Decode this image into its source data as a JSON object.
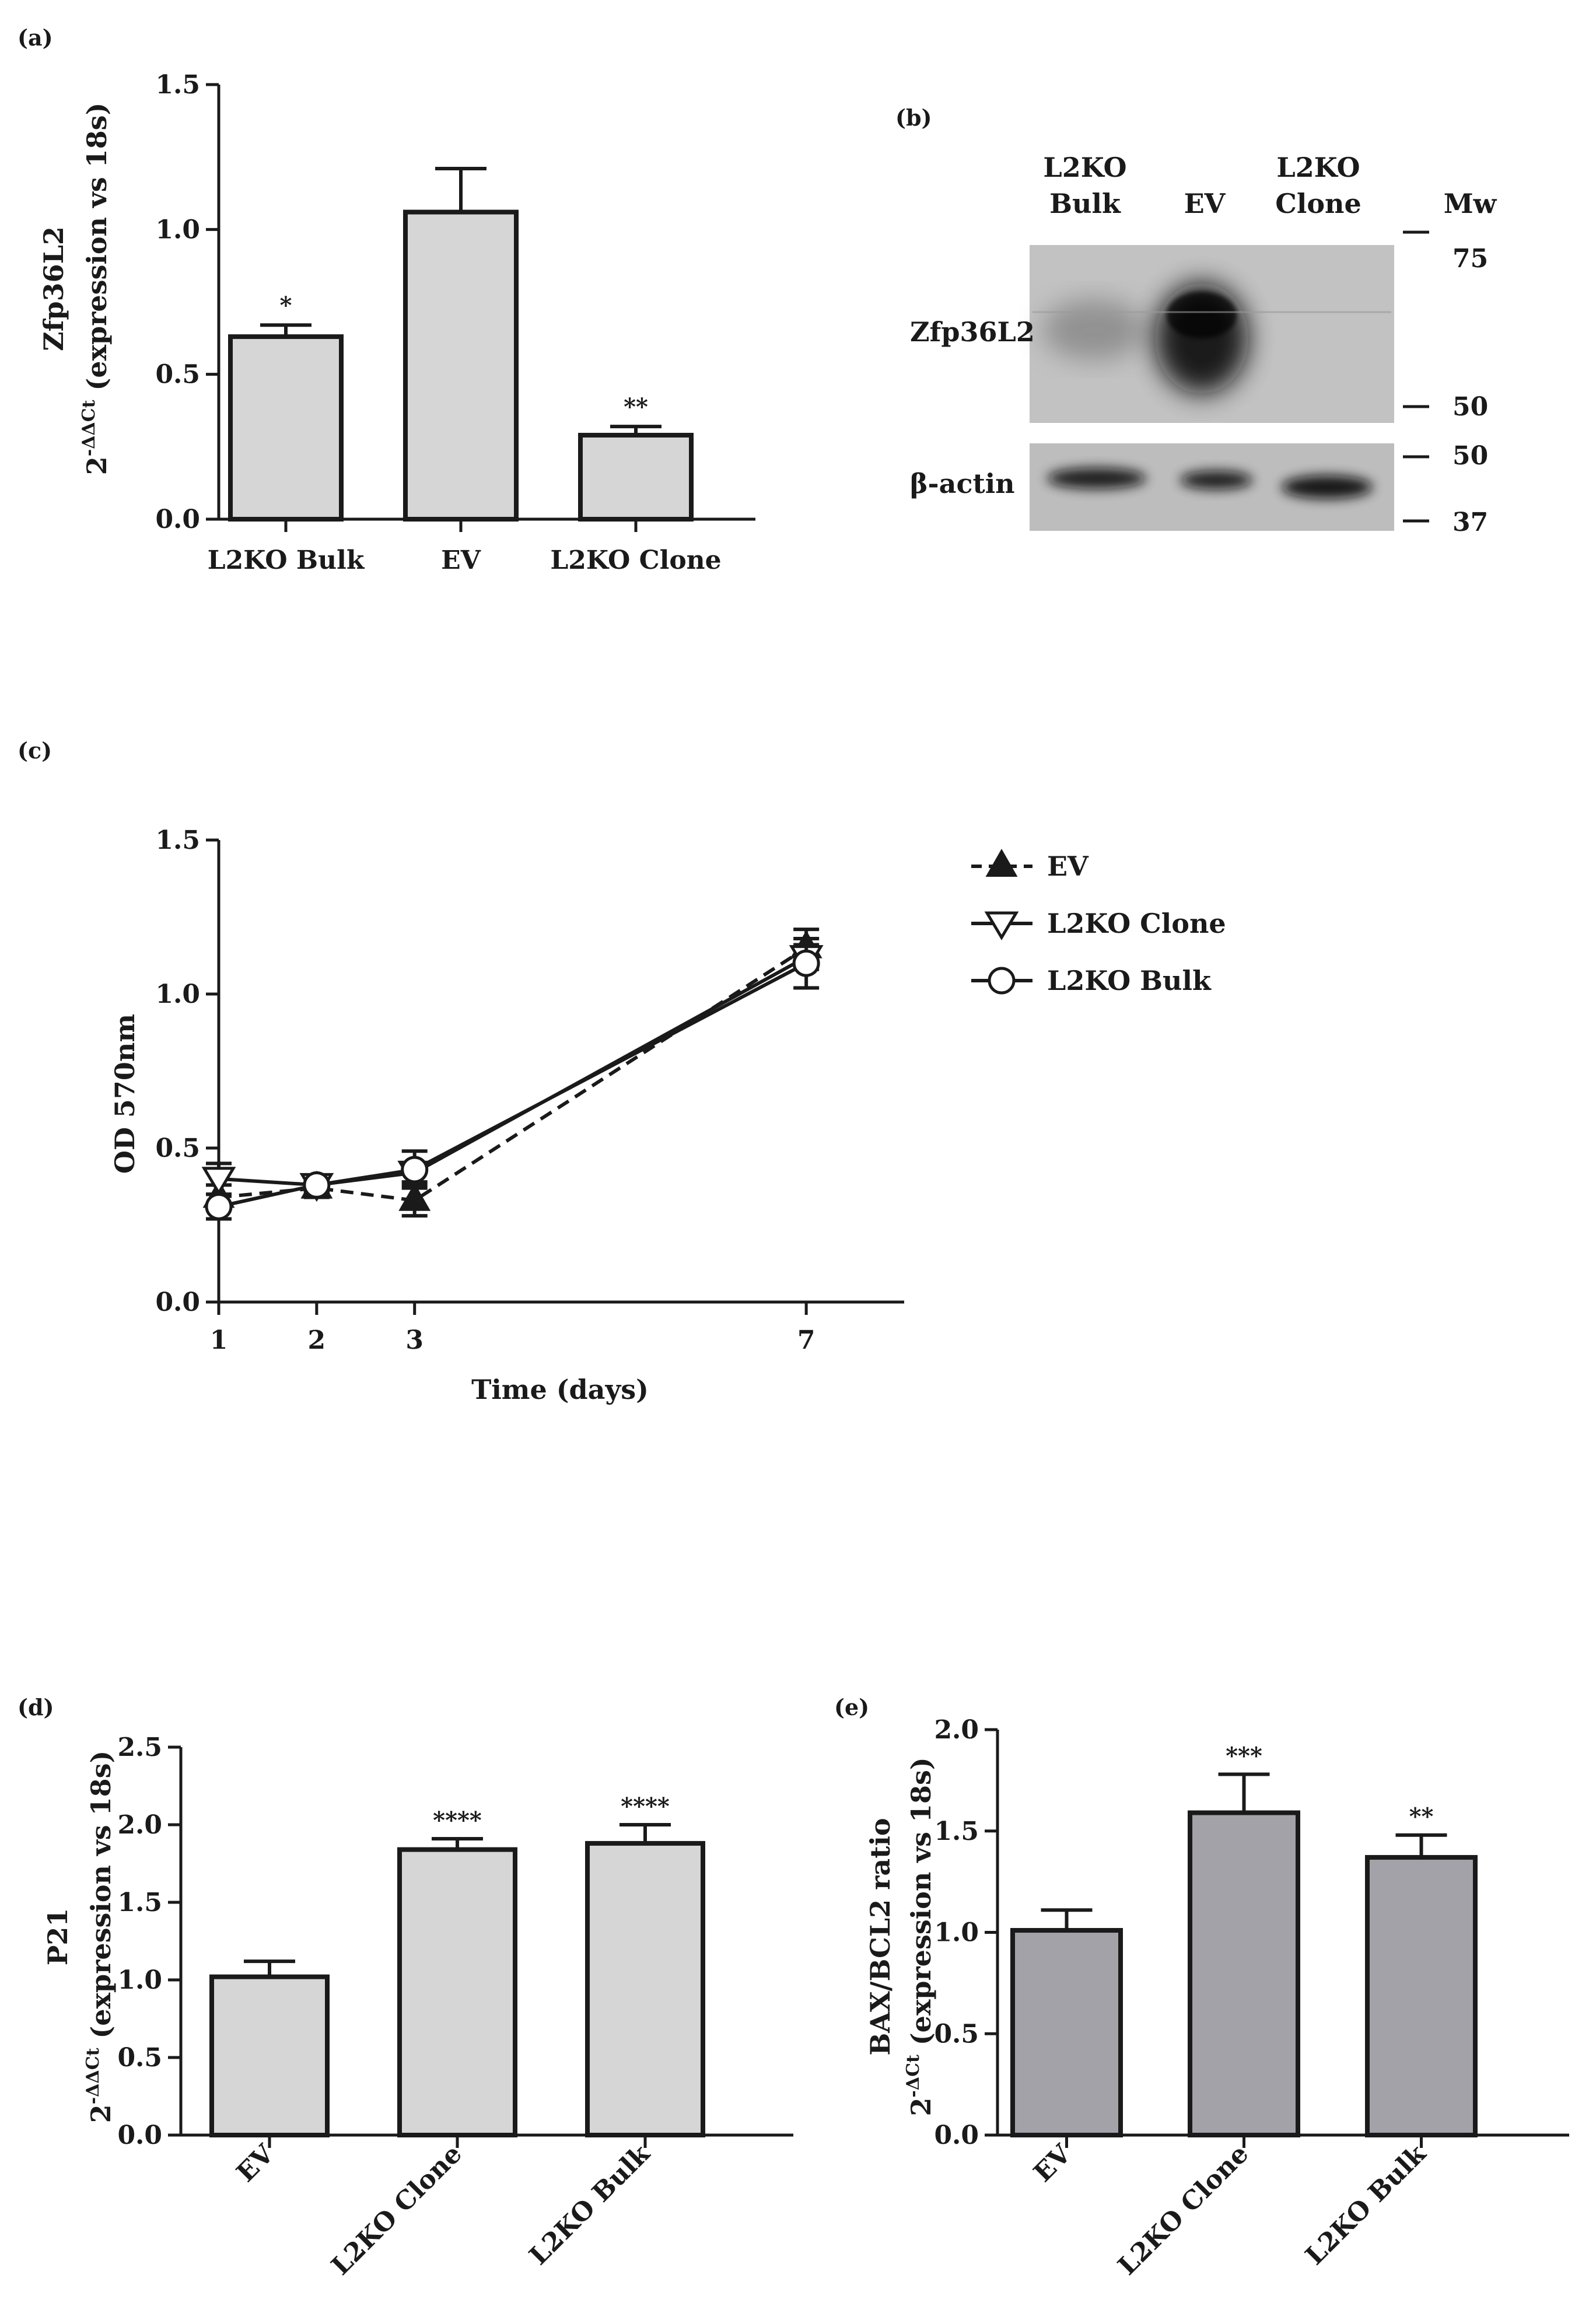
{
  "colors": {
    "bar_light": "#d6d6d6",
    "bar_mid": "#a2a2a8",
    "ink": "#1a1a1a",
    "blot_bg": "#bdbdbd"
  },
  "panel_b": {
    "label": "(b)",
    "lanes": [
      {
        "line1": "L2KO",
        "line2": "Bulk"
      },
      {
        "line1": "EV",
        "line2": ""
      },
      {
        "line1": "L2KO",
        "line2": "Clone"
      }
    ],
    "mw_header": "Mw",
    "mw_upper": [
      "75",
      "50"
    ],
    "mw_lower": [
      "50",
      "37"
    ],
    "band_upper": "Zfp36L2",
    "band_lower": "β-actin"
  },
  "chart_data": [
    {
      "panel": "(a)",
      "type": "bar",
      "categories": [
        "L2KO Bulk",
        "EV",
        "L2KO Clone"
      ],
      "values": [
        0.63,
        1.06,
        0.29
      ],
      "errors": [
        0.04,
        0.15,
        0.03
      ],
      "significance": [
        "*",
        "",
        "**"
      ],
      "bar_color": "light-gray",
      "ylim": [
        0,
        1.5
      ],
      "yticks": [
        "0.0",
        "0.5",
        "1.0",
        "1.5"
      ],
      "ylabel_line1": "Zfp36L2",
      "ylabel_base": "2",
      "ylabel_sup": "-ΔΔCt",
      "ylabel_rest": " (expression vs 18s)",
      "xlabel_rotated": false
    },
    {
      "panel": "(c)",
      "type": "line",
      "x": [
        1,
        2,
        3,
        7
      ],
      "xticks": [
        "1",
        "2",
        "3",
        "7"
      ],
      "xlim": [
        1,
        8
      ],
      "ylim": [
        0,
        1.5
      ],
      "yticks": [
        "0.0",
        "0.5",
        "1.0",
        "1.5"
      ],
      "xlabel": "Time (days)",
      "ylabel": "OD 570nm",
      "series": [
        {
          "name": "EV",
          "values": [
            0.34,
            0.37,
            0.33,
            1.15
          ],
          "errors": [
            0.04,
            0.03,
            0.05,
            0.06
          ],
          "marker": "triangle-up-filled",
          "dashed": true
        },
        {
          "name": "L2KO Clone",
          "values": [
            0.4,
            0.38,
            0.42,
            1.12
          ],
          "errors": [
            0.05,
            0.02,
            0.03,
            0.04
          ],
          "marker": "triangle-down-open",
          "dashed": false
        },
        {
          "name": "L2KO Bulk",
          "values": [
            0.31,
            0.38,
            0.43,
            1.1
          ],
          "errors": [
            0.04,
            0.02,
            0.06,
            0.08
          ],
          "marker": "circle-open",
          "dashed": false
        }
      ]
    },
    {
      "panel": "(d)",
      "type": "bar",
      "categories": [
        "EV",
        "L2KO Clone",
        "L2KO Bulk"
      ],
      "values": [
        1.02,
        1.84,
        1.88
      ],
      "errors": [
        0.1,
        0.07,
        0.12
      ],
      "significance": [
        "",
        "****",
        "****"
      ],
      "bar_color": "light-gray",
      "ylim": [
        0,
        2.5
      ],
      "yticks": [
        "0.0",
        "0.5",
        "1.0",
        "1.5",
        "2.0",
        "2.5"
      ],
      "ylabel_line1": "P21",
      "ylabel_base": "2",
      "ylabel_sup": "-ΔΔCt",
      "ylabel_rest": " (expression vs 18s)",
      "xlabel_rotated": true
    },
    {
      "panel": "(e)",
      "type": "bar",
      "categories": [
        "EV",
        "L2KO Clone",
        "L2KO Bulk"
      ],
      "values": [
        1.01,
        1.59,
        1.37
      ],
      "errors": [
        0.1,
        0.19,
        0.11
      ],
      "significance": [
        "",
        "***",
        "**"
      ],
      "bar_color": "mid-gray",
      "ylim": [
        0,
        2.0
      ],
      "yticks": [
        "0.0",
        "0.5",
        "1.0",
        "1.5",
        "2.0"
      ],
      "ylabel_line1": "BAX/BCL2 ratio",
      "ylabel_base": "2",
      "ylabel_sup": "-ΔCt",
      "ylabel_rest": " (expression vs 18s)",
      "xlabel_rotated": true
    }
  ]
}
